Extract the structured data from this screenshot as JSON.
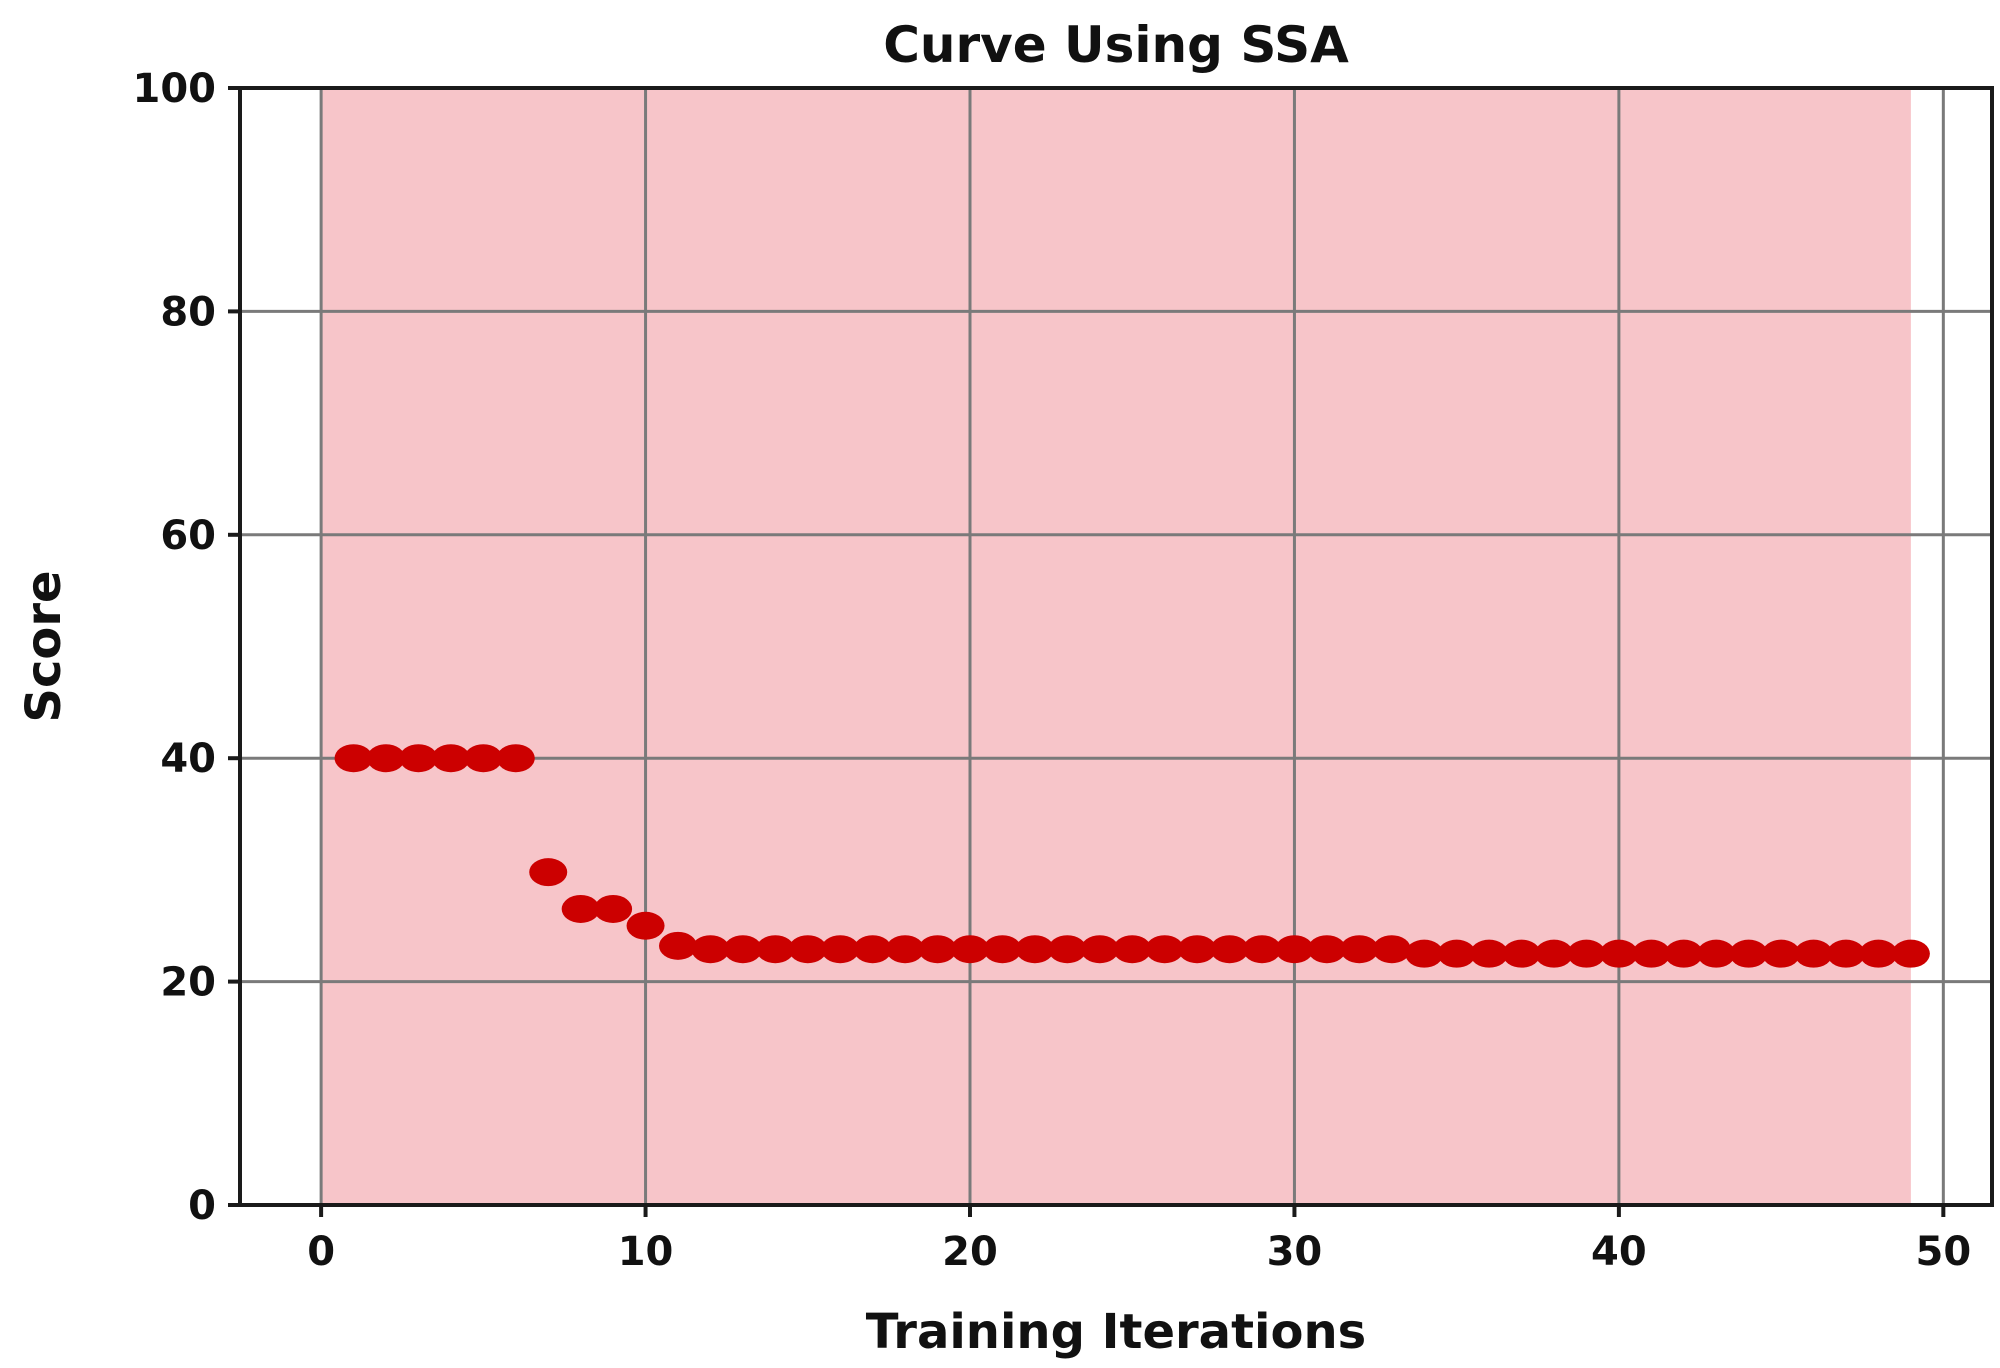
{
  "chart_data": {
    "type": "scatter",
    "title": "Curve Using SSA",
    "xlabel": "Training Iterations",
    "ylabel": "Score",
    "xlim": [
      -2.5,
      51.5
    ],
    "ylim": [
      0,
      100
    ],
    "xticks": [
      0,
      10,
      20,
      30,
      40,
      50
    ],
    "yticks": [
      0,
      20,
      40,
      60,
      80,
      100
    ],
    "grid": true,
    "shaded_region": {
      "x_start": 0,
      "x_end": 49,
      "color": "#f7c5c9"
    },
    "series": [
      {
        "name": "Score",
        "color": "#cc0000",
        "x": [
          1,
          2,
          3,
          4,
          5,
          6,
          7,
          8,
          9,
          10,
          11,
          12,
          13,
          14,
          15,
          16,
          17,
          18,
          19,
          20,
          21,
          22,
          23,
          24,
          25,
          26,
          27,
          28,
          29,
          30,
          31,
          32,
          33,
          34,
          35,
          36,
          37,
          38,
          39,
          40,
          41,
          42,
          43,
          44,
          45,
          46,
          47,
          48,
          49
        ],
        "y": [
          40,
          40,
          40,
          40,
          40,
          40,
          29.8,
          26.5,
          26.5,
          25,
          23.2,
          22.9,
          22.9,
          22.9,
          22.9,
          22.9,
          22.9,
          22.9,
          22.9,
          22.9,
          22.9,
          22.9,
          22.9,
          22.9,
          22.9,
          22.9,
          22.9,
          22.9,
          22.9,
          22.9,
          22.9,
          22.9,
          22.9,
          22.5,
          22.5,
          22.5,
          22.5,
          22.5,
          22.5,
          22.5,
          22.5,
          22.5,
          22.5,
          22.5,
          22.5,
          22.5,
          22.5,
          22.5,
          22.5
        ]
      }
    ]
  }
}
